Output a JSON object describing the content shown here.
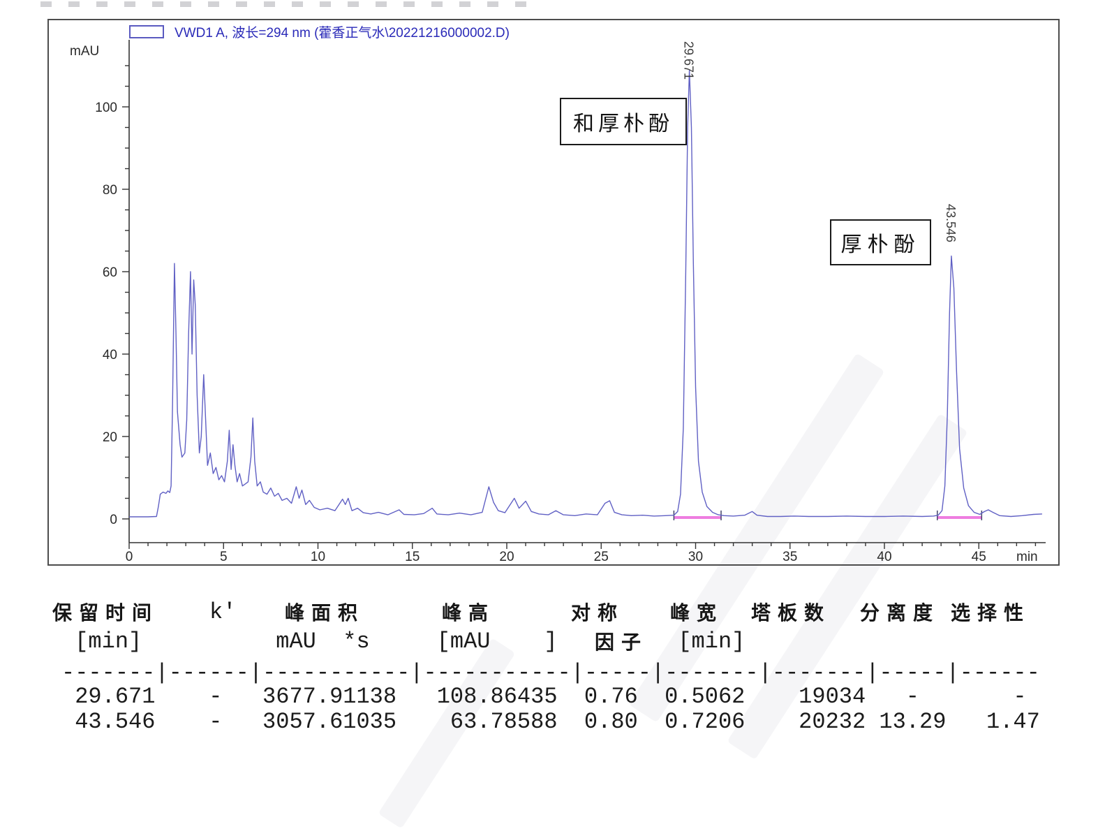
{
  "chart": {
    "legend": "VWD1 A, 波长=294 nm (藿香正气水\\20221216000002.D)",
    "legend_color": "#2a2ab8",
    "annotations": [
      {
        "text": "和厚朴酚",
        "peak_rt": 29.671
      },
      {
        "text": "厚朴酚",
        "peak_rt": 43.546
      }
    ]
  },
  "chart_data": {
    "type": "line",
    "title": "VWD1 A, 波长=294 nm (藿香正气水\\20221216000002.D)",
    "xlabel": "min",
    "ylabel": "mAU",
    "xlim": [
      0,
      48.5
    ],
    "ylim": [
      -2,
      116
    ],
    "x_ticks_major": [
      0,
      5,
      10,
      15,
      20,
      25,
      30,
      35,
      40,
      45
    ],
    "x_tick_minor_step": 1,
    "y_ticks_major": [
      0,
      20,
      40,
      60,
      80,
      100
    ],
    "y_tick_minor_step": 5,
    "grid": false,
    "legend_position": "top-left",
    "trace_color": "#6060c4",
    "baseline_color": "#ee7de0",
    "axis_color": "#333333",
    "peaks": [
      {
        "rt": 29.671,
        "height_mAU": 108.86435,
        "label": "和厚朴酚"
      },
      {
        "rt": 43.546,
        "height_mAU": 63.78588,
        "label": "厚朴酚"
      }
    ],
    "integration_baselines_min": [
      [
        28.85,
        31.35
      ],
      [
        42.8,
        45.15
      ]
    ],
    "trace": [
      [
        0,
        0.5
      ],
      [
        1.0,
        0.5
      ],
      [
        1.45,
        0.6
      ],
      [
        1.55,
        3
      ],
      [
        1.65,
        6
      ],
      [
        1.8,
        6.5
      ],
      [
        1.95,
        6.2
      ],
      [
        2.05,
        6.8
      ],
      [
        2.15,
        6.4
      ],
      [
        2.22,
        8
      ],
      [
        2.3,
        28
      ],
      [
        2.4,
        62
      ],
      [
        2.48,
        45
      ],
      [
        2.56,
        26
      ],
      [
        2.7,
        18
      ],
      [
        2.8,
        15
      ],
      [
        2.95,
        16
      ],
      [
        3.05,
        24
      ],
      [
        3.15,
        45
      ],
      [
        3.25,
        60
      ],
      [
        3.33,
        40
      ],
      [
        3.42,
        58
      ],
      [
        3.5,
        52
      ],
      [
        3.6,
        30
      ],
      [
        3.72,
        16
      ],
      [
        3.82,
        20
      ],
      [
        3.95,
        35
      ],
      [
        4.05,
        24
      ],
      [
        4.15,
        13
      ],
      [
        4.3,
        16
      ],
      [
        4.45,
        11
      ],
      [
        4.6,
        12.5
      ],
      [
        4.75,
        9.5
      ],
      [
        4.9,
        10.5
      ],
      [
        5.05,
        9
      ],
      [
        5.2,
        14
      ],
      [
        5.3,
        21.5
      ],
      [
        5.4,
        12
      ],
      [
        5.5,
        18
      ],
      [
        5.6,
        13
      ],
      [
        5.72,
        9
      ],
      [
        5.85,
        11
      ],
      [
        6.0,
        8
      ],
      [
        6.15,
        8.5
      ],
      [
        6.3,
        9
      ],
      [
        6.45,
        15
      ],
      [
        6.55,
        24.5
      ],
      [
        6.65,
        14
      ],
      [
        6.78,
        8
      ],
      [
        6.95,
        9
      ],
      [
        7.1,
        6.5
      ],
      [
        7.3,
        6
      ],
      [
        7.5,
        7.5
      ],
      [
        7.7,
        5.5
      ],
      [
        7.9,
        6.2
      ],
      [
        8.1,
        4.5
      ],
      [
        8.35,
        5
      ],
      [
        8.6,
        3.8
      ],
      [
        8.85,
        7.8
      ],
      [
        9.0,
        5
      ],
      [
        9.15,
        7
      ],
      [
        9.35,
        3.5
      ],
      [
        9.55,
        4.5
      ],
      [
        9.8,
        2.8
      ],
      [
        10.1,
        2.2
      ],
      [
        10.5,
        2.6
      ],
      [
        10.9,
        2
      ],
      [
        11.3,
        4.8
      ],
      [
        11.45,
        3.5
      ],
      [
        11.6,
        5
      ],
      [
        11.8,
        2
      ],
      [
        12.1,
        2.6
      ],
      [
        12.4,
        1.5
      ],
      [
        12.8,
        1.2
      ],
      [
        13.2,
        1.6
      ],
      [
        13.7,
        1
      ],
      [
        14.3,
        2.2
      ],
      [
        14.55,
        1.1
      ],
      [
        15.1,
        1
      ],
      [
        15.6,
        1.3
      ],
      [
        16.05,
        2.6
      ],
      [
        16.3,
        1.2
      ],
      [
        16.9,
        1
      ],
      [
        17.5,
        1.4
      ],
      [
        18.1,
        1
      ],
      [
        18.7,
        1.6
      ],
      [
        19.05,
        7.8
      ],
      [
        19.3,
        4
      ],
      [
        19.55,
        2
      ],
      [
        19.9,
        1.5
      ],
      [
        20.4,
        5
      ],
      [
        20.65,
        2.6
      ],
      [
        21.0,
        4.3
      ],
      [
        21.3,
        1.8
      ],
      [
        21.7,
        1.2
      ],
      [
        22.2,
        1
      ],
      [
        22.6,
        2
      ],
      [
        23.0,
        1
      ],
      [
        23.6,
        0.8
      ],
      [
        24.2,
        1.2
      ],
      [
        24.8,
        1
      ],
      [
        25.2,
        3.8
      ],
      [
        25.45,
        4.4
      ],
      [
        25.7,
        1.6
      ],
      [
        26.1,
        1
      ],
      [
        26.6,
        0.8
      ],
      [
        27.2,
        0.9
      ],
      [
        27.8,
        0.7
      ],
      [
        28.4,
        0.8
      ],
      [
        28.85,
        0.9
      ],
      [
        29.05,
        1.8
      ],
      [
        29.2,
        6
      ],
      [
        29.35,
        22
      ],
      [
        29.48,
        60
      ],
      [
        29.58,
        95
      ],
      [
        29.671,
        108.86
      ],
      [
        29.78,
        95
      ],
      [
        29.88,
        62
      ],
      [
        30.0,
        32
      ],
      [
        30.15,
        14
      ],
      [
        30.35,
        6.5
      ],
      [
        30.6,
        3
      ],
      [
        30.9,
        1.6
      ],
      [
        31.2,
        1
      ],
      [
        31.5,
        0.8
      ],
      [
        32.0,
        0.7
      ],
      [
        32.6,
        0.9
      ],
      [
        33.0,
        1.8
      ],
      [
        33.25,
        0.9
      ],
      [
        33.8,
        0.6
      ],
      [
        34.5,
        0.6
      ],
      [
        35.2,
        0.7
      ],
      [
        36.0,
        0.6
      ],
      [
        37.0,
        0.6
      ],
      [
        38.0,
        0.7
      ],
      [
        39.0,
        0.6
      ],
      [
        40.0,
        0.6
      ],
      [
        41.0,
        0.7
      ],
      [
        42.0,
        0.6
      ],
      [
        42.6,
        0.7
      ],
      [
        42.85,
        0.9
      ],
      [
        43.05,
        2
      ],
      [
        43.2,
        8
      ],
      [
        43.33,
        25
      ],
      [
        43.45,
        50
      ],
      [
        43.546,
        63.79
      ],
      [
        43.68,
        56
      ],
      [
        43.82,
        36
      ],
      [
        43.98,
        17
      ],
      [
        44.2,
        7.5
      ],
      [
        44.45,
        3.2
      ],
      [
        44.75,
        1.6
      ],
      [
        45.05,
        1.1
      ],
      [
        45.3,
        1.8
      ],
      [
        45.5,
        2.2
      ],
      [
        45.75,
        1.6
      ],
      [
        46.1,
        0.8
      ],
      [
        46.7,
        0.6
      ],
      [
        47.3,
        0.8
      ],
      [
        47.9,
        1.1
      ],
      [
        48.35,
        1.2
      ]
    ]
  },
  "table": {
    "headers": [
      {
        "l1": "保留时间",
        "l2": "[min]"
      },
      {
        "l1": "k'",
        "l2": ""
      },
      {
        "l1": "峰面积",
        "l2": "mAU  *s"
      },
      {
        "l1": "峰高",
        "l2": "[mAU    ]"
      },
      {
        "l1": "对称",
        "l2": "因子"
      },
      {
        "l1": "峰宽",
        "l2": "[min]"
      },
      {
        "l1": "塔板数",
        "l2": ""
      },
      {
        "l1": "分离度",
        "l2": ""
      },
      {
        "l1": "选择性",
        "l2": ""
      }
    ],
    "units_line": " [min]          mAU  *s     [mAU    ]         [min]",
    "separator": "-------|------|-----------|-----------|-----|-------|-------|-----|------",
    "rows": [
      [
        "29.671",
        "-",
        "3677.91138",
        "108.86435",
        "0.76",
        "0.5062",
        "19034",
        "-",
        "-"
      ],
      [
        "43.546",
        "-",
        "3057.61035",
        "63.78588",
        "0.80",
        "0.7206",
        "20232",
        "13.29",
        "1.47"
      ]
    ],
    "row_lines": [
      " 29.671    -   3677.91138   108.86435  0.76  0.5062    19034   -       -",
      " 43.546    -   3057.61035    63.78588  0.80  0.7206    20232 13.29   1.47"
    ]
  }
}
